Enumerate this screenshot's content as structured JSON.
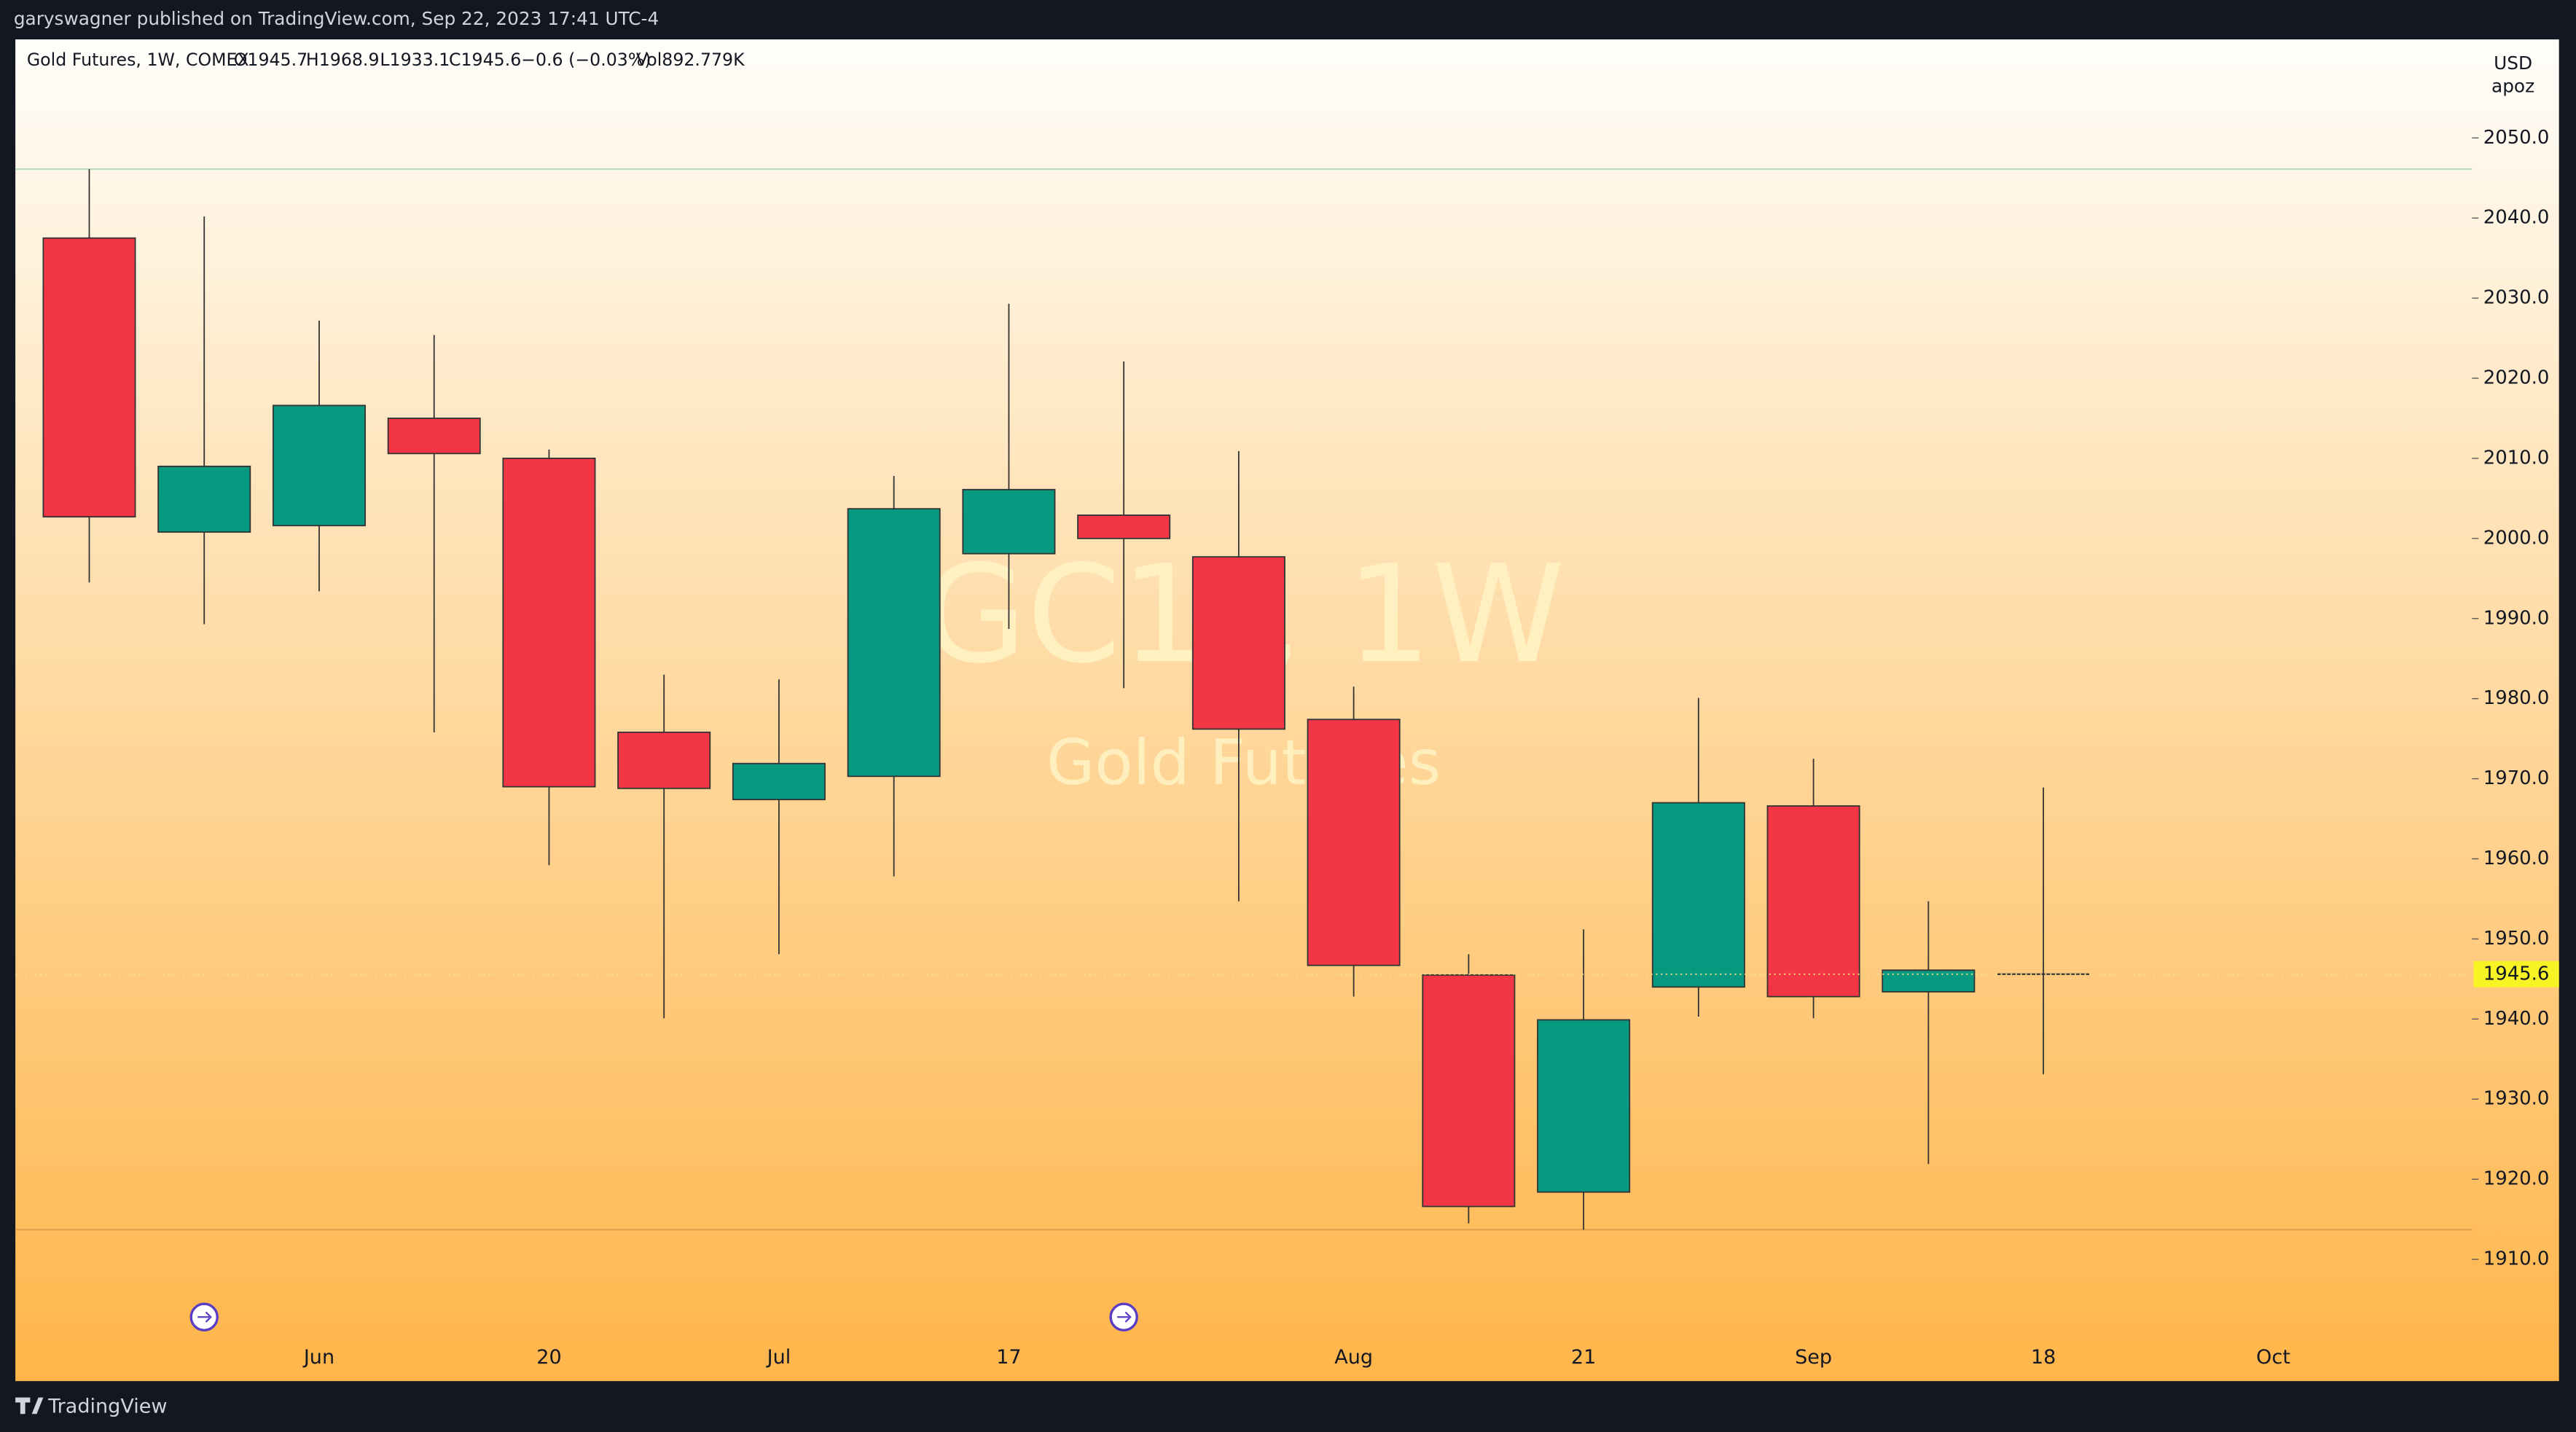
{
  "header": {
    "published": "garyswagner published on TradingView.com, Sep 22, 2023 17:41 UTC-4",
    "legend": [
      "Gold Futures, 1W, COMEX",
      "O1945.7",
      "H1968.9",
      "L1933.1",
      "C1945.6",
      "−0.6 (−0.03%)",
      "Vol892.779K"
    ],
    "currency": "USD",
    "unit": "apoz"
  },
  "chart_data": {
    "type": "candlestick",
    "watermark": "GC1!, 1W",
    "watermark_subtitle": "Gold Futures",
    "categories": [
      null,
      null,
      "Jun",
      null,
      "20",
      null,
      "Jul",
      null,
      "17",
      null,
      null,
      "Aug",
      null,
      "21",
      null,
      "Sep",
      null,
      "18",
      null,
      "Oct"
    ],
    "open": [
      2037.5,
      2000.8,
      2001.6,
      2015.0,
      2010.0,
      1975.8,
      1967.4,
      1970.3,
      1998.1,
      2002.9,
      1997.7,
      1977.4,
      1945.5,
      1918.4,
      1944.0,
      1966.6,
      1943.4,
      1945.7,
      null,
      null
    ],
    "high": [
      2046.1,
      2040.2,
      2027.2,
      2025.4,
      2011.1,
      1983.0,
      1982.4,
      2007.8,
      2029.3,
      2022.1,
      2010.9,
      1981.5,
      1948.1,
      1951.2,
      1980.1,
      1972.5,
      1954.7,
      1968.9,
      null,
      null
    ],
    "low": [
      1994.5,
      1989.3,
      1993.4,
      1975.8,
      1959.2,
      1940.1,
      1948.1,
      1957.8,
      1988.7,
      1981.3,
      1954.7,
      1942.8,
      1914.5,
      1913.7,
      1940.3,
      1940.1,
      1921.9,
      1933.1,
      null,
      null
    ],
    "close": [
      2002.7,
      2009.0,
      2016.6,
      2010.6,
      1969.0,
      1968.8,
      1971.9,
      2003.7,
      2006.1,
      2000.0,
      1976.2,
      1946.7,
      1916.6,
      1939.9,
      1967.0,
      1942.8,
      1946.1,
      1945.6,
      null,
      null
    ],
    "up_color": "#089981",
    "down_color": "#f23645",
    "ylim": [
      1894.8,
      2062.3
    ],
    "yticks": [
      {
        "value": 1910,
        "label": "1910.0"
      },
      {
        "value": 1920,
        "label": "1920.0"
      },
      {
        "value": 1930,
        "label": "1930.0"
      },
      {
        "value": 1940,
        "label": "1940.0"
      },
      {
        "value": 1950,
        "label": "1950.0"
      },
      {
        "value": 1960,
        "label": "1960.0"
      },
      {
        "value": 1970,
        "label": "1970.0"
      },
      {
        "value": 1980,
        "label": "1980.0"
      },
      {
        "value": 1990,
        "label": "1990.0"
      },
      {
        "value": 2000,
        "label": "2000.0"
      },
      {
        "value": 2010,
        "label": "2010.0"
      },
      {
        "value": 2020,
        "label": "2020.0"
      },
      {
        "value": 2030,
        "label": "2030.0"
      },
      {
        "value": 2040,
        "label": "2040.0"
      },
      {
        "value": 2050,
        "label": "2050.0"
      }
    ]
  },
  "footer": {
    "brand": "TradingView"
  }
}
